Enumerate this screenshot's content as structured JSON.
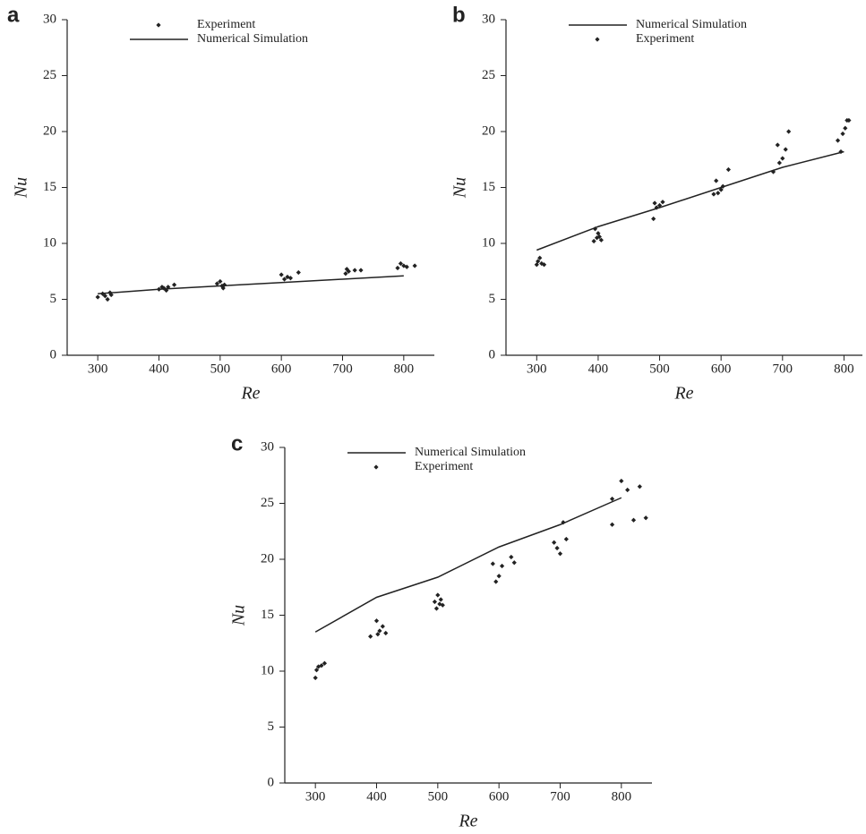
{
  "chart_data": [
    {
      "type": "line",
      "label": "a",
      "xlabel": "Re",
      "ylabel": "Nu",
      "legend_position": "top",
      "xlim": [
        250,
        850
      ],
      "ylim": [
        0,
        30
      ],
      "xticks": [
        300,
        400,
        500,
        600,
        700,
        800
      ],
      "yticks": [
        0,
        5,
        10,
        15,
        20,
        25,
        30
      ],
      "series": [
        {
          "name": "Experiment",
          "mode": "markers",
          "color": "#222",
          "x": [
            300,
            308,
            312,
            316,
            320,
            322,
            400,
            405,
            408,
            412,
            415,
            425,
            495,
            500,
            503,
            505,
            507,
            600,
            605,
            610,
            615,
            628,
            705,
            707,
            710,
            720,
            730,
            790,
            795,
            800,
            805,
            818
          ],
          "values": [
            5.2,
            5.5,
            5.3,
            5.0,
            5.6,
            5.4,
            5.9,
            6.1,
            6.0,
            5.8,
            6.1,
            6.3,
            6.4,
            6.6,
            6.2,
            6.0,
            6.3,
            7.2,
            6.8,
            7.0,
            6.9,
            7.4,
            7.3,
            7.7,
            7.5,
            7.6,
            7.6,
            7.8,
            8.2,
            8.0,
            7.9,
            8.0
          ]
        },
        {
          "name": "Numerical Simulation",
          "mode": "lines",
          "color": "#222",
          "x": [
            300,
            400,
            500,
            600,
            700,
            800
          ],
          "values": [
            5.5,
            5.9,
            6.2,
            6.5,
            6.8,
            7.1
          ]
        }
      ]
    },
    {
      "type": "line",
      "label": "b",
      "xlabel": "Re",
      "ylabel": "Nu",
      "legend_position": "top",
      "xlim": [
        250,
        830
      ],
      "ylim": [
        0,
        30
      ],
      "xticks": [
        300,
        400,
        500,
        600,
        700,
        800
      ],
      "yticks": [
        0,
        5,
        10,
        15,
        20,
        25,
        30
      ],
      "series": [
        {
          "name": "Numerical Simulation",
          "mode": "lines",
          "color": "#222",
          "x": [
            300,
            400,
            500,
            600,
            700,
            800
          ],
          "values": [
            9.4,
            11.5,
            13.2,
            15.0,
            16.8,
            18.2
          ]
        },
        {
          "name": "Experiment",
          "mode": "markers",
          "color": "#222",
          "x": [
            300,
            302,
            305,
            308,
            312,
            393,
            395,
            398,
            400,
            402,
            405,
            490,
            492,
            495,
            500,
            505,
            588,
            592,
            595,
            600,
            603,
            612,
            685,
            692,
            695,
            700,
            705,
            710,
            790,
            795,
            798,
            802,
            805,
            808
          ],
          "values": [
            8.1,
            8.4,
            8.7,
            8.2,
            8.1,
            10.2,
            11.3,
            10.5,
            10.9,
            10.6,
            10.3,
            12.2,
            13.6,
            13.2,
            13.4,
            13.7,
            14.4,
            15.6,
            14.5,
            14.8,
            15.1,
            16.6,
            16.4,
            18.8,
            17.2,
            17.6,
            18.4,
            20.0,
            19.2,
            18.2,
            19.8,
            20.3,
            21.0,
            21.0
          ]
        }
      ]
    },
    {
      "type": "line",
      "label": "c",
      "xlabel": "Re",
      "ylabel": "Nu",
      "legend_position": "top",
      "xlim": [
        250,
        850
      ],
      "ylim": [
        0,
        30
      ],
      "xticks": [
        300,
        400,
        500,
        600,
        700,
        800
      ],
      "yticks": [
        0,
        5,
        10,
        15,
        20,
        25,
        30
      ],
      "series": [
        {
          "name": "Numerical Simulation",
          "mode": "lines",
          "color": "#222",
          "x": [
            300,
            400,
            500,
            600,
            700,
            800
          ],
          "values": [
            13.5,
            16.6,
            18.4,
            21.1,
            23.1,
            25.5
          ]
        },
        {
          "name": "Experiment",
          "mode": "markers",
          "color": "#222",
          "x": [
            300,
            302,
            305,
            310,
            315,
            390,
            400,
            402,
            405,
            410,
            415,
            495,
            498,
            500,
            503,
            505,
            508,
            590,
            595,
            600,
            605,
            620,
            625,
            690,
            695,
            700,
            705,
            710,
            785,
            785,
            800,
            810,
            820,
            830,
            840
          ],
          "values": [
            9.4,
            10.1,
            10.4,
            10.5,
            10.7,
            13.1,
            14.5,
            13.3,
            13.6,
            14.0,
            13.4,
            16.2,
            15.6,
            16.8,
            16.0,
            16.4,
            15.9,
            19.6,
            18.0,
            18.5,
            19.4,
            20.2,
            19.7,
            21.5,
            21.0,
            20.5,
            23.3,
            21.8,
            25.4,
            23.1,
            27.0,
            26.2,
            23.5,
            26.5,
            23.7
          ]
        }
      ]
    }
  ]
}
